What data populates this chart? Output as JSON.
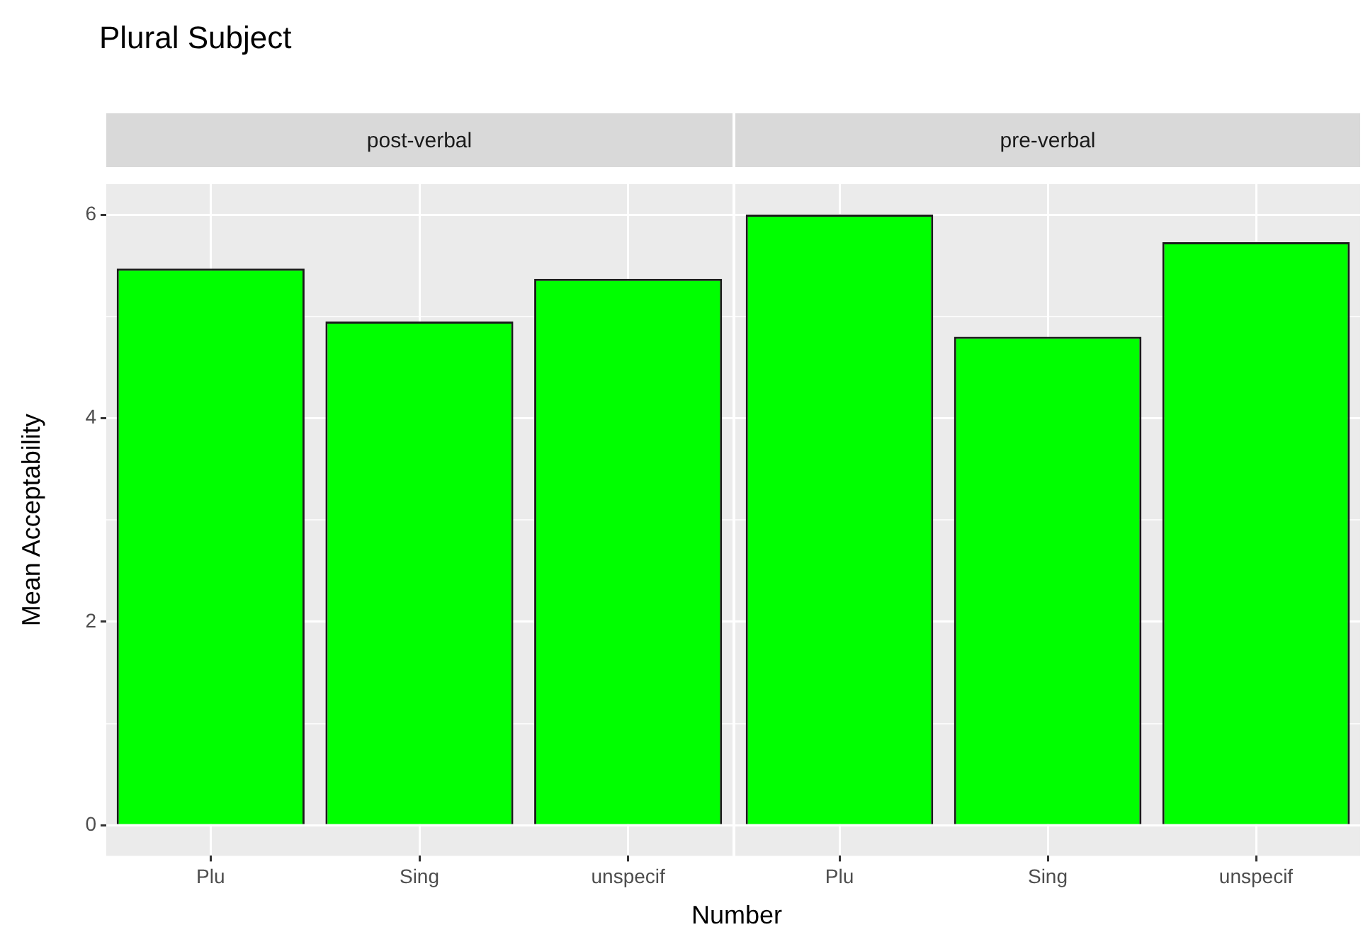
{
  "chart_data": [
    {
      "type": "bar",
      "title": "Plural Subject",
      "subtitle": "post-verbal",
      "ylabel": "Mean Acceptability",
      "categories": [
        "Plu",
        "Sing",
        "unspecif"
      ],
      "values": [
        5.47,
        4.95,
        5.37
      ],
      "color": "#00ff00",
      "ylim": [
        -0.3,
        6.3
      ],
      "yticks": [
        0,
        {
          "value": 1,
          "label": null
        },
        2,
        {
          "value": 3,
          "label": null
        },
        4,
        {
          "value": 5,
          "label": null
        },
        6
      ],
      "grid": true
    },
    {
      "type": "bar",
      "subtitle": "pre-verbal",
      "xlabel": "Number",
      "categories": [
        "Plu",
        "Sing",
        "unspecif"
      ],
      "values": [
        6.0,
        4.8,
        5.73
      ],
      "color": "#00ff00",
      "ylim": [
        -0.3,
        6.3
      ],
      "yticks": [
        0,
        {
          "value": 1,
          "label": null
        },
        2,
        {
          "value": 3,
          "label": null
        },
        4,
        {
          "value": 5,
          "label": null
        },
        6
      ],
      "grid": true,
      "tick_labels": "x"
    }
  ]
}
